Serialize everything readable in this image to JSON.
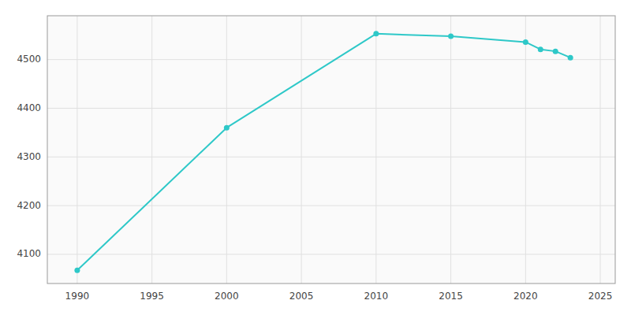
{
  "chart_data": {
    "type": "line",
    "x": [
      1990,
      2000,
      2010,
      2015,
      2020,
      2021,
      2022,
      2023
    ],
    "values": [
      4067,
      4360,
      4553,
      4548,
      4536,
      4521,
      4517,
      4504
    ],
    "color": "#2ec8c8",
    "marker": "circle",
    "xlim": [
      1988,
      2026
    ],
    "ylim": [
      4040,
      4590
    ],
    "xticks": [
      1990,
      1995,
      2000,
      2005,
      2010,
      2015,
      2020,
      2025
    ],
    "yticks": [
      4100,
      4200,
      4300,
      4400,
      4500
    ],
    "grid": true
  }
}
